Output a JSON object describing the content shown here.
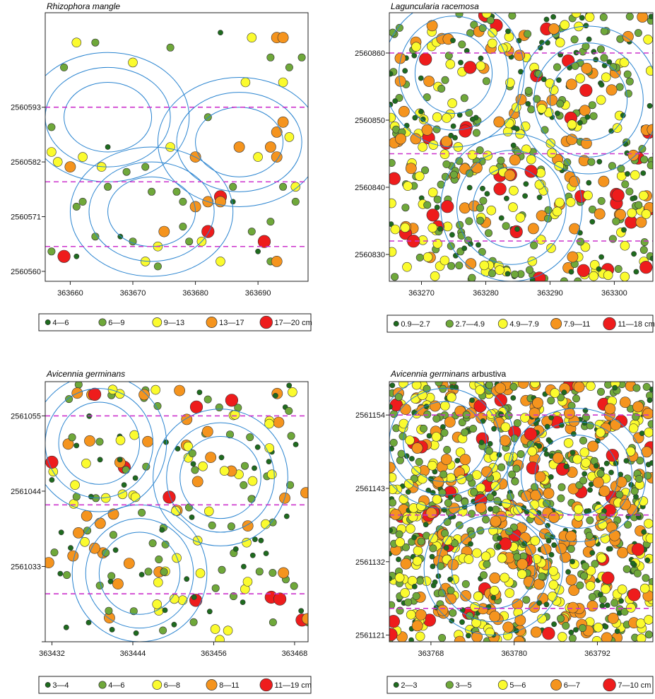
{
  "figure": {
    "panels": 4
  },
  "chart_data": [
    {
      "type": "scatter",
      "title": {
        "italic": "Rhizophora mangle",
        "suffix": ""
      },
      "xlim": [
        363656,
        363698
      ],
      "ylim": [
        2560558,
        2560612
      ],
      "xticks": [
        363660,
        363670,
        363680,
        363690
      ],
      "xtick_labels": [
        "363660",
        "363670",
        "363680",
        "363690"
      ],
      "yticks": [
        2560593,
        2560582,
        2560571,
        2560560
      ],
      "ytick_labels": [
        "2560593",
        "2560582",
        "2560571",
        "2560560"
      ],
      "hlines": [
        2560593,
        2560578,
        2560565
      ],
      "circles": [
        {
          "cx": 363666,
          "cy": 2560591,
          "radii": [
            7,
            10,
            13
          ]
        },
        {
          "cx": 363687,
          "cy": 2560586,
          "radii": [
            7,
            10,
            13
          ]
        },
        {
          "cx": 363673,
          "cy": 2560572,
          "radii": [
            7,
            10,
            13
          ]
        }
      ],
      "legend": [
        {
          "label": "4—6",
          "color": "#1e6b1e"
        },
        {
          "label": "6—9",
          "color": "#6fa83a"
        },
        {
          "label": "9—13",
          "color": "#fbfb2e"
        },
        {
          "label": "13—17",
          "color": "#f5941e"
        },
        {
          "label": "17—20 cm",
          "color": "#ee1c1c"
        }
      ],
      "points": [
        [
          363684,
          2560608,
          0
        ],
        [
          363692,
          2560603,
          1
        ],
        [
          363689,
          2560607,
          2
        ],
        [
          363693,
          2560607,
          3
        ],
        [
          363694,
          2560607,
          3
        ],
        [
          363697,
          2560603,
          1
        ],
        [
          363661,
          2560606,
          2
        ],
        [
          363670,
          2560602,
          2
        ],
        [
          363676,
          2560605,
          1
        ],
        [
          363695,
          2560601,
          1
        ],
        [
          363664,
          2560606,
          1
        ],
        [
          363657,
          2560589,
          1
        ],
        [
          363657,
          2560584,
          2
        ],
        [
          363658,
          2560582,
          2
        ],
        [
          363662,
          2560583,
          2
        ],
        [
          363666,
          2560585,
          0
        ],
        [
          363676,
          2560585,
          2
        ],
        [
          363672,
          2560581,
          1
        ],
        [
          363665,
          2560581,
          2
        ],
        [
          363660,
          2560581,
          3
        ],
        [
          363659,
          2560601,
          1
        ],
        [
          363682,
          2560591,
          1
        ],
        [
          363694,
          2560598,
          2
        ],
        [
          363688,
          2560598,
          2
        ],
        [
          363694,
          2560590,
          3
        ],
        [
          363693,
          2560588,
          3
        ],
        [
          363695,
          2560587,
          2
        ],
        [
          363692,
          2560585,
          3
        ],
        [
          363693,
          2560583,
          3
        ],
        [
          363690,
          2560583,
          2
        ],
        [
          363687,
          2560585,
          3
        ],
        [
          363680,
          2560583,
          3
        ],
        [
          363694,
          2560577,
          1
        ],
        [
          363696,
          2560577,
          2
        ],
        [
          363696,
          2560574,
          1
        ],
        [
          363692,
          2560570,
          1
        ],
        [
          363686,
          2560577,
          1
        ],
        [
          363666,
          2560577,
          1
        ],
        [
          363662,
          2560574,
          1
        ],
        [
          363661,
          2560573,
          1
        ],
        [
          363657,
          2560564,
          1
        ],
        [
          363664,
          2560567,
          1
        ],
        [
          363668,
          2560567,
          0
        ],
        [
          363670,
          2560566,
          1
        ],
        [
          363672,
          2560562,
          2
        ],
        [
          363674,
          2560565,
          2
        ],
        [
          363675,
          2560568,
          3
        ],
        [
          363678,
          2560569,
          1
        ],
        [
          363679,
          2560566,
          1
        ],
        [
          363682,
          2560568,
          4
        ],
        [
          363680,
          2560573,
          3
        ],
        [
          363677,
          2560576,
          1
        ],
        [
          363684,
          2560575,
          4
        ],
        [
          363684,
          2560574,
          3
        ],
        [
          363682,
          2560574,
          3
        ],
        [
          363686,
          2560574,
          0
        ],
        [
          363689,
          2560568,
          1
        ],
        [
          363691,
          2560566,
          4
        ],
        [
          363690,
          2560564,
          0
        ],
        [
          363692,
          2560562,
          1
        ],
        [
          363693,
          2560562,
          3
        ],
        [
          363684,
          2560562,
          2
        ],
        [
          363659,
          2560563,
          4
        ],
        [
          363661,
          2560563,
          0
        ],
        [
          363674,
          2560561,
          1
        ],
        [
          363681,
          2560566,
          2
        ],
        [
          363669,
          2560580,
          1
        ],
        [
          363673,
          2560576,
          1
        ],
        [
          363678,
          2560574,
          1
        ]
      ]
    },
    {
      "type": "scatter",
      "title": {
        "italic": "Laguncularia racemosa",
        "suffix": ""
      },
      "xlim": [
        363265,
        363306
      ],
      "ylim": [
        2560826,
        2560866
      ],
      "xticks": [
        363270,
        363280,
        363290,
        363300
      ],
      "xtick_labels": [
        "363270",
        "363280",
        "363290",
        "363300"
      ],
      "yticks": [
        2560860,
        2560850,
        2560840,
        2560830
      ],
      "ytick_labels": [
        "2560860",
        "2560850",
        "2560840",
        "2560830"
      ],
      "hlines": [
        2560860,
        2560845,
        2560832
      ],
      "circles": [
        {
          "cx": 363275,
          "cy": 2560857,
          "radii": [
            6,
            8.5,
            11
          ]
        },
        {
          "cx": 363296,
          "cy": 2560853,
          "radii": [
            6,
            8.5,
            11
          ]
        },
        {
          "cx": 363284,
          "cy": 2560837,
          "radii": [
            6,
            8.5,
            11
          ]
        }
      ],
      "legend": [
        {
          "label": "0.9—2.7",
          "color": "#1e6b1e"
        },
        {
          "label": "2.7—4.9",
          "color": "#6fa83a"
        },
        {
          "label": "4.9—7.9",
          "color": "#fbfb2e"
        },
        {
          "label": "7.9—11",
          "color": "#f5941e"
        },
        {
          "label": "11—18 cm",
          "color": "#ee1c1c"
        }
      ],
      "random": {
        "seed": 12345,
        "count": 520,
        "weights": [
          22,
          34,
          22,
          16,
          6
        ]
      }
    },
    {
      "type": "scatter",
      "title": {
        "italic": "Avicennia germinans",
        "suffix": ""
      },
      "xlim": [
        363431,
        363470
      ],
      "ylim": [
        2561022,
        2561060
      ],
      "xticks": [
        363432,
        363444,
        363456,
        363468
      ],
      "xtick_labels": [
        "363432",
        "363444",
        "363456",
        "363468"
      ],
      "yticks": [
        2561055,
        2561044,
        2561033,
        2561022
      ],
      "ytick_labels": [
        "2561055",
        "2561044",
        "2561033",
        ""
      ],
      "hlines": [
        2561055,
        2561042,
        2561029
      ],
      "circles": [
        {
          "cx": 363439,
          "cy": 2561051,
          "radii": [
            6,
            8,
            10
          ]
        },
        {
          "cx": 363457,
          "cy": 2561046,
          "radii": [
            6,
            8,
            10
          ]
        },
        {
          "cx": 363445,
          "cy": 2561032,
          "radii": [
            6,
            8,
            10
          ]
        }
      ],
      "legend": [
        {
          "label": "3—4",
          "color": "#1e6b1e"
        },
        {
          "label": "4—6",
          "color": "#6fa83a"
        },
        {
          "label": "6—8",
          "color": "#fbfb2e"
        },
        {
          "label": "8—11",
          "color": "#f5941e"
        },
        {
          "label": "11—19 cm",
          "color": "#ee1c1c"
        }
      ],
      "random": {
        "seed": 777,
        "count": 200,
        "weights": [
          22,
          32,
          22,
          15,
          9
        ]
      }
    },
    {
      "type": "scatter",
      "title": {
        "italic": "Avicennia germinans",
        "suffix": " arbustiva"
      },
      "xlim": [
        363762,
        363800
      ],
      "ylim": [
        2561120,
        2561159
      ],
      "xticks": [
        363768,
        363780,
        363792
      ],
      "xtick_labels": [
        "363768",
        "363780",
        "363792"
      ],
      "yticks": [
        2561154,
        2561143,
        2561132,
        2561121
      ],
      "ytick_labels": [
        "2561154",
        "2561143",
        "2561132",
        "2561121"
      ],
      "hlines": [
        2561154,
        2561139,
        2561125
      ],
      "circles": [
        {
          "cx": 363770,
          "cy": 2561150,
          "radii": [
            6,
            8,
            10
          ]
        },
        {
          "cx": 363789,
          "cy": 2561145,
          "radii": [
            6,
            8,
            10
          ]
        },
        {
          "cx": 363777,
          "cy": 2561131,
          "radii": [
            6,
            8,
            10
          ]
        }
      ],
      "legend": [
        {
          "label": "2—3",
          "color": "#1e6b1e"
        },
        {
          "label": "3—5",
          "color": "#6fa83a"
        },
        {
          "label": "5—6",
          "color": "#fbfb2e"
        },
        {
          "label": "6—7",
          "color": "#f5941e"
        },
        {
          "label": "7—10 cm",
          "color": "#ee1c1c"
        }
      ],
      "random": {
        "seed": 4242,
        "count": 1000,
        "weights": [
          20,
          30,
          26,
          20,
          4
        ]
      }
    }
  ]
}
